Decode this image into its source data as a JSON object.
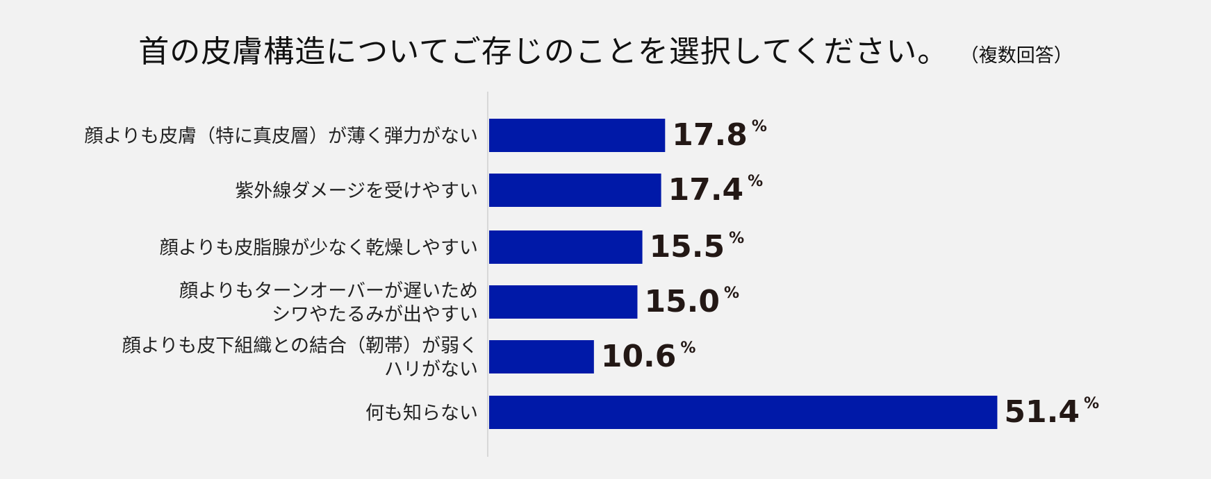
{
  "chart_data": {
    "type": "bar",
    "orientation": "horizontal",
    "title": "首の皮膚構造についてご存じのことを選択してください。",
    "subtitle": "（複数回答）",
    "categories": [
      [
        "顔よりも皮膚（特に真皮層）が薄く弾力がない"
      ],
      [
        "紫外線ダメージを受けやすい"
      ],
      [
        "顔よりも皮脂腺が少なく乾燥しやすい"
      ],
      [
        "顔よりもターンオーバーが遅いため",
        "シワやたるみが出やすい"
      ],
      [
        "顔よりも皮下組織との結合（靭帯）が弱く",
        "ハリがない"
      ],
      [
        "何も知らない"
      ]
    ],
    "values": [
      17.8,
      17.4,
      15.5,
      15.0,
      10.6,
      51.4
    ],
    "value_labels": [
      "17.8",
      "17.4",
      "15.5",
      "15.0",
      "10.6",
      "51.4"
    ],
    "unit": "%",
    "bar_color": "#0019a8",
    "xlim": [
      0,
      60
    ],
    "grid": false,
    "legend": "none"
  }
}
